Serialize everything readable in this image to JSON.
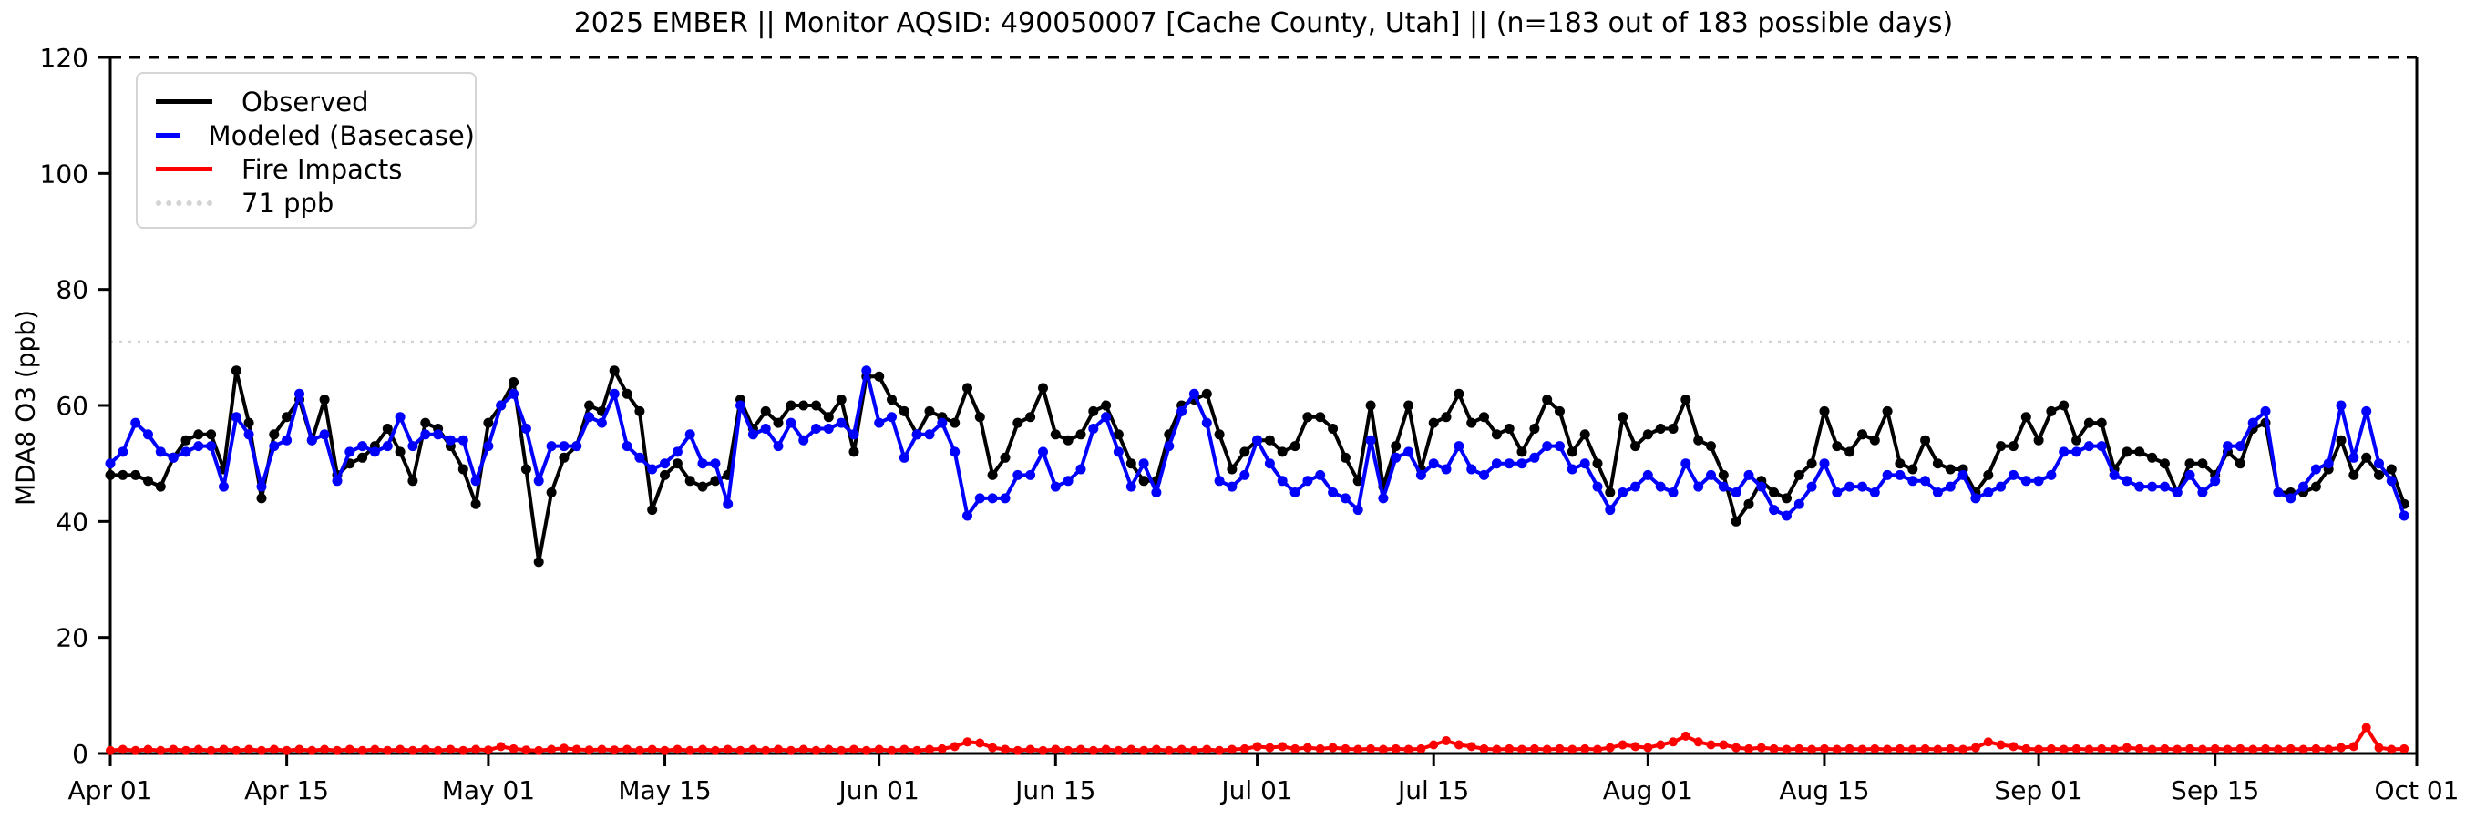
{
  "title": "2025 EMBER || Monitor AQSID: 490050007 [Cache County, Utah] || (n=183 out of 183 possible days)",
  "axes": {
    "ylabel": "MDA8 O3 (ppb)",
    "y_ticks": [
      0,
      20,
      40,
      60,
      80,
      100,
      120
    ],
    "x_tick_labels": [
      "Apr 01",
      "Apr 15",
      "May 01",
      "May 15",
      "Jun 01",
      "Jun 15",
      "Jul 01",
      "Jul 15",
      "Aug 01",
      "Aug 15",
      "Sep 01",
      "Sep 15",
      "Oct 01"
    ],
    "x_tick_days": [
      0,
      14,
      30,
      44,
      61,
      75,
      91,
      105,
      122,
      136,
      153,
      167,
      183
    ]
  },
  "legend": {
    "items": [
      {
        "label": "Observed",
        "color": "#000000",
        "style": "solid"
      },
      {
        "label": "Modeled (Basecase)",
        "color": "#0000ff",
        "style": "solid"
      },
      {
        "label": "Fire Impacts",
        "color": "#ff0000",
        "style": "solid"
      },
      {
        "label": "71 ppb",
        "color": "#d3d3d3",
        "style": "dotted"
      }
    ]
  },
  "chart_data": {
    "type": "line",
    "title": "2025 EMBER || Monitor AQSID: 490050007 [Cache County, Utah] || (n=183 out of 183 possible days)",
    "xlabel": "",
    "ylabel": "MDA8 O3 (ppb)",
    "ylim": [
      0,
      120
    ],
    "n_days": 183,
    "x_start": "Apr 01",
    "x_end": "Sep 30",
    "x_tick_labels": [
      "Apr 01",
      "Apr 15",
      "May 01",
      "May 15",
      "Jun 01",
      "Jun 15",
      "Jul 01",
      "Jul 15",
      "Aug 01",
      "Aug 15",
      "Sep 01",
      "Sep 15",
      "Oct 01"
    ],
    "x_tick_days": [
      0,
      14,
      30,
      44,
      61,
      75,
      91,
      105,
      122,
      136,
      153,
      167,
      183
    ],
    "threshold": {
      "label": "71 ppb",
      "value": 71,
      "color": "#d3d3d3"
    },
    "top_spine_value": 120,
    "series": [
      {
        "name": "Observed",
        "color": "#000000",
        "values": [
          48,
          48,
          48,
          47,
          46,
          51,
          54,
          55,
          55,
          49,
          66,
          57,
          44,
          55,
          58,
          61,
          54,
          61,
          48,
          50,
          51,
          53,
          56,
          52,
          47,
          57,
          56,
          53,
          49,
          43,
          57,
          60,
          64,
          49,
          33,
          45,
          51,
          53,
          60,
          59,
          66,
          62,
          59,
          42,
          48,
          50,
          47,
          46,
          47,
          48,
          61,
          56,
          59,
          57,
          60,
          60,
          60,
          58,
          61,
          52,
          65,
          65,
          61,
          59,
          55,
          59,
          58,
          57,
          63,
          58,
          48,
          51,
          57,
          58,
          63,
          55,
          54,
          55,
          59,
          60,
          55,
          50,
          47,
          47,
          55,
          60,
          61,
          62,
          55,
          49,
          52,
          54,
          54,
          52,
          53,
          58,
          58,
          56,
          51,
          47,
          60,
          46,
          53,
          60,
          49,
          57,
          58,
          62,
          57,
          58,
          55,
          56,
          52,
          56,
          61,
          59,
          52,
          55,
          50,
          45,
          58,
          53,
          55,
          56,
          56,
          61,
          54,
          53,
          48,
          40,
          43,
          47,
          45,
          44,
          48,
          50,
          59,
          53,
          52,
          55,
          54,
          59,
          50,
          49,
          54,
          50,
          49,
          49,
          45,
          48,
          53,
          53,
          58,
          54,
          59,
          60,
          54,
          57,
          57,
          49,
          52,
          52,
          51,
          50,
          45,
          50,
          50,
          48,
          52,
          50,
          56,
          57,
          45,
          45,
          45,
          46,
          49,
          54,
          48,
          51,
          48,
          49,
          43
        ]
      },
      {
        "name": "Modeled (Basecase)",
        "color": "#0000ff",
        "values": [
          50,
          52,
          57,
          55,
          52,
          51,
          52,
          53,
          53,
          46,
          58,
          55,
          46,
          53,
          54,
          62,
          54,
          55,
          47,
          52,
          53,
          52,
          53,
          58,
          53,
          55,
          55,
          54,
          54,
          47,
          53,
          60,
          62,
          56,
          47,
          53,
          53,
          53,
          58,
          57,
          62,
          53,
          51,
          49,
          50,
          52,
          55,
          50,
          50,
          43,
          60,
          55,
          56,
          53,
          57,
          54,
          56,
          56,
          57,
          55,
          66,
          57,
          58,
          51,
          55,
          55,
          57,
          52,
          41,
          44,
          44,
          44,
          48,
          48,
          52,
          46,
          47,
          49,
          56,
          58,
          52,
          46,
          50,
          45,
          53,
          59,
          62,
          57,
          47,
          46,
          48,
          54,
          50,
          47,
          45,
          47,
          48,
          45,
          44,
          42,
          54,
          44,
          51,
          52,
          48,
          50,
          49,
          53,
          49,
          48,
          50,
          50,
          50,
          51,
          53,
          53,
          49,
          50,
          46,
          42,
          45,
          46,
          48,
          46,
          45,
          50,
          46,
          48,
          46,
          45,
          48,
          46,
          42,
          41,
          43,
          46,
          50,
          45,
          46,
          46,
          45,
          48,
          48,
          47,
          47,
          45,
          46,
          48,
          44,
          45,
          46,
          48,
          47,
          47,
          48,
          52,
          52,
          53,
          53,
          48,
          47,
          46,
          46,
          46,
          45,
          48,
          45,
          47,
          53,
          53,
          57,
          59,
          45,
          44,
          46,
          49,
          50,
          60,
          51,
          59,
          50,
          47,
          41
        ]
      },
      {
        "name": "Fire Impacts",
        "color": "#ff0000",
        "values": [
          0.5,
          0.7,
          0.5,
          0.7,
          0.5,
          0.7,
          0.5,
          0.7,
          0.5,
          0.7,
          0.5,
          0.7,
          0.5,
          0.7,
          0.5,
          0.7,
          0.5,
          0.7,
          0.5,
          0.7,
          0.5,
          0.7,
          0.5,
          0.7,
          0.5,
          0.7,
          0.5,
          0.7,
          0.5,
          0.7,
          0.6,
          1.2,
          0.8,
          0.6,
          0.5,
          0.7,
          0.9,
          0.7,
          0.6,
          0.7,
          0.6,
          0.7,
          0.5,
          0.7,
          0.5,
          0.7,
          0.5,
          0.7,
          0.5,
          0.7,
          0.5,
          0.7,
          0.5,
          0.7,
          0.5,
          0.7,
          0.5,
          0.7,
          0.5,
          0.7,
          0.5,
          0.7,
          0.5,
          0.7,
          0.5,
          0.7,
          0.8,
          1.2,
          2.0,
          1.8,
          1.0,
          0.7,
          0.5,
          0.7,
          0.5,
          0.7,
          0.5,
          0.7,
          0.5,
          0.7,
          0.5,
          0.7,
          0.5,
          0.7,
          0.5,
          0.7,
          0.5,
          0.7,
          0.5,
          0.7,
          0.8,
          1.2,
          1.0,
          1.2,
          0.8,
          1.0,
          0.8,
          1.0,
          0.8,
          0.7,
          0.8,
          0.7,
          0.8,
          0.7,
          0.8,
          1.5,
          2.2,
          1.5,
          1.2,
          0.8,
          0.7,
          0.8,
          0.7,
          0.8,
          0.7,
          0.8,
          0.7,
          0.8,
          0.7,
          1.0,
          1.5,
          1.2,
          1.0,
          1.5,
          2.0,
          3.0,
          2.0,
          1.5,
          1.5,
          1.0,
          0.8,
          1.0,
          0.8,
          0.7,
          0.8,
          0.7,
          0.8,
          0.7,
          0.8,
          0.7,
          0.8,
          0.7,
          0.8,
          0.7,
          0.8,
          0.7,
          0.8,
          0.7,
          1.0,
          2.0,
          1.5,
          1.2,
          0.8,
          0.7,
          0.8,
          0.7,
          0.8,
          0.7,
          0.8,
          0.7,
          1.0,
          0.8,
          0.7,
          0.8,
          0.7,
          0.8,
          0.7,
          0.8,
          0.7,
          0.8,
          0.7,
          0.8,
          0.7,
          0.8,
          0.7,
          0.8,
          0.7,
          1.0,
          1.2,
          4.5,
          1.0,
          0.7,
          0.8
        ]
      }
    ]
  }
}
